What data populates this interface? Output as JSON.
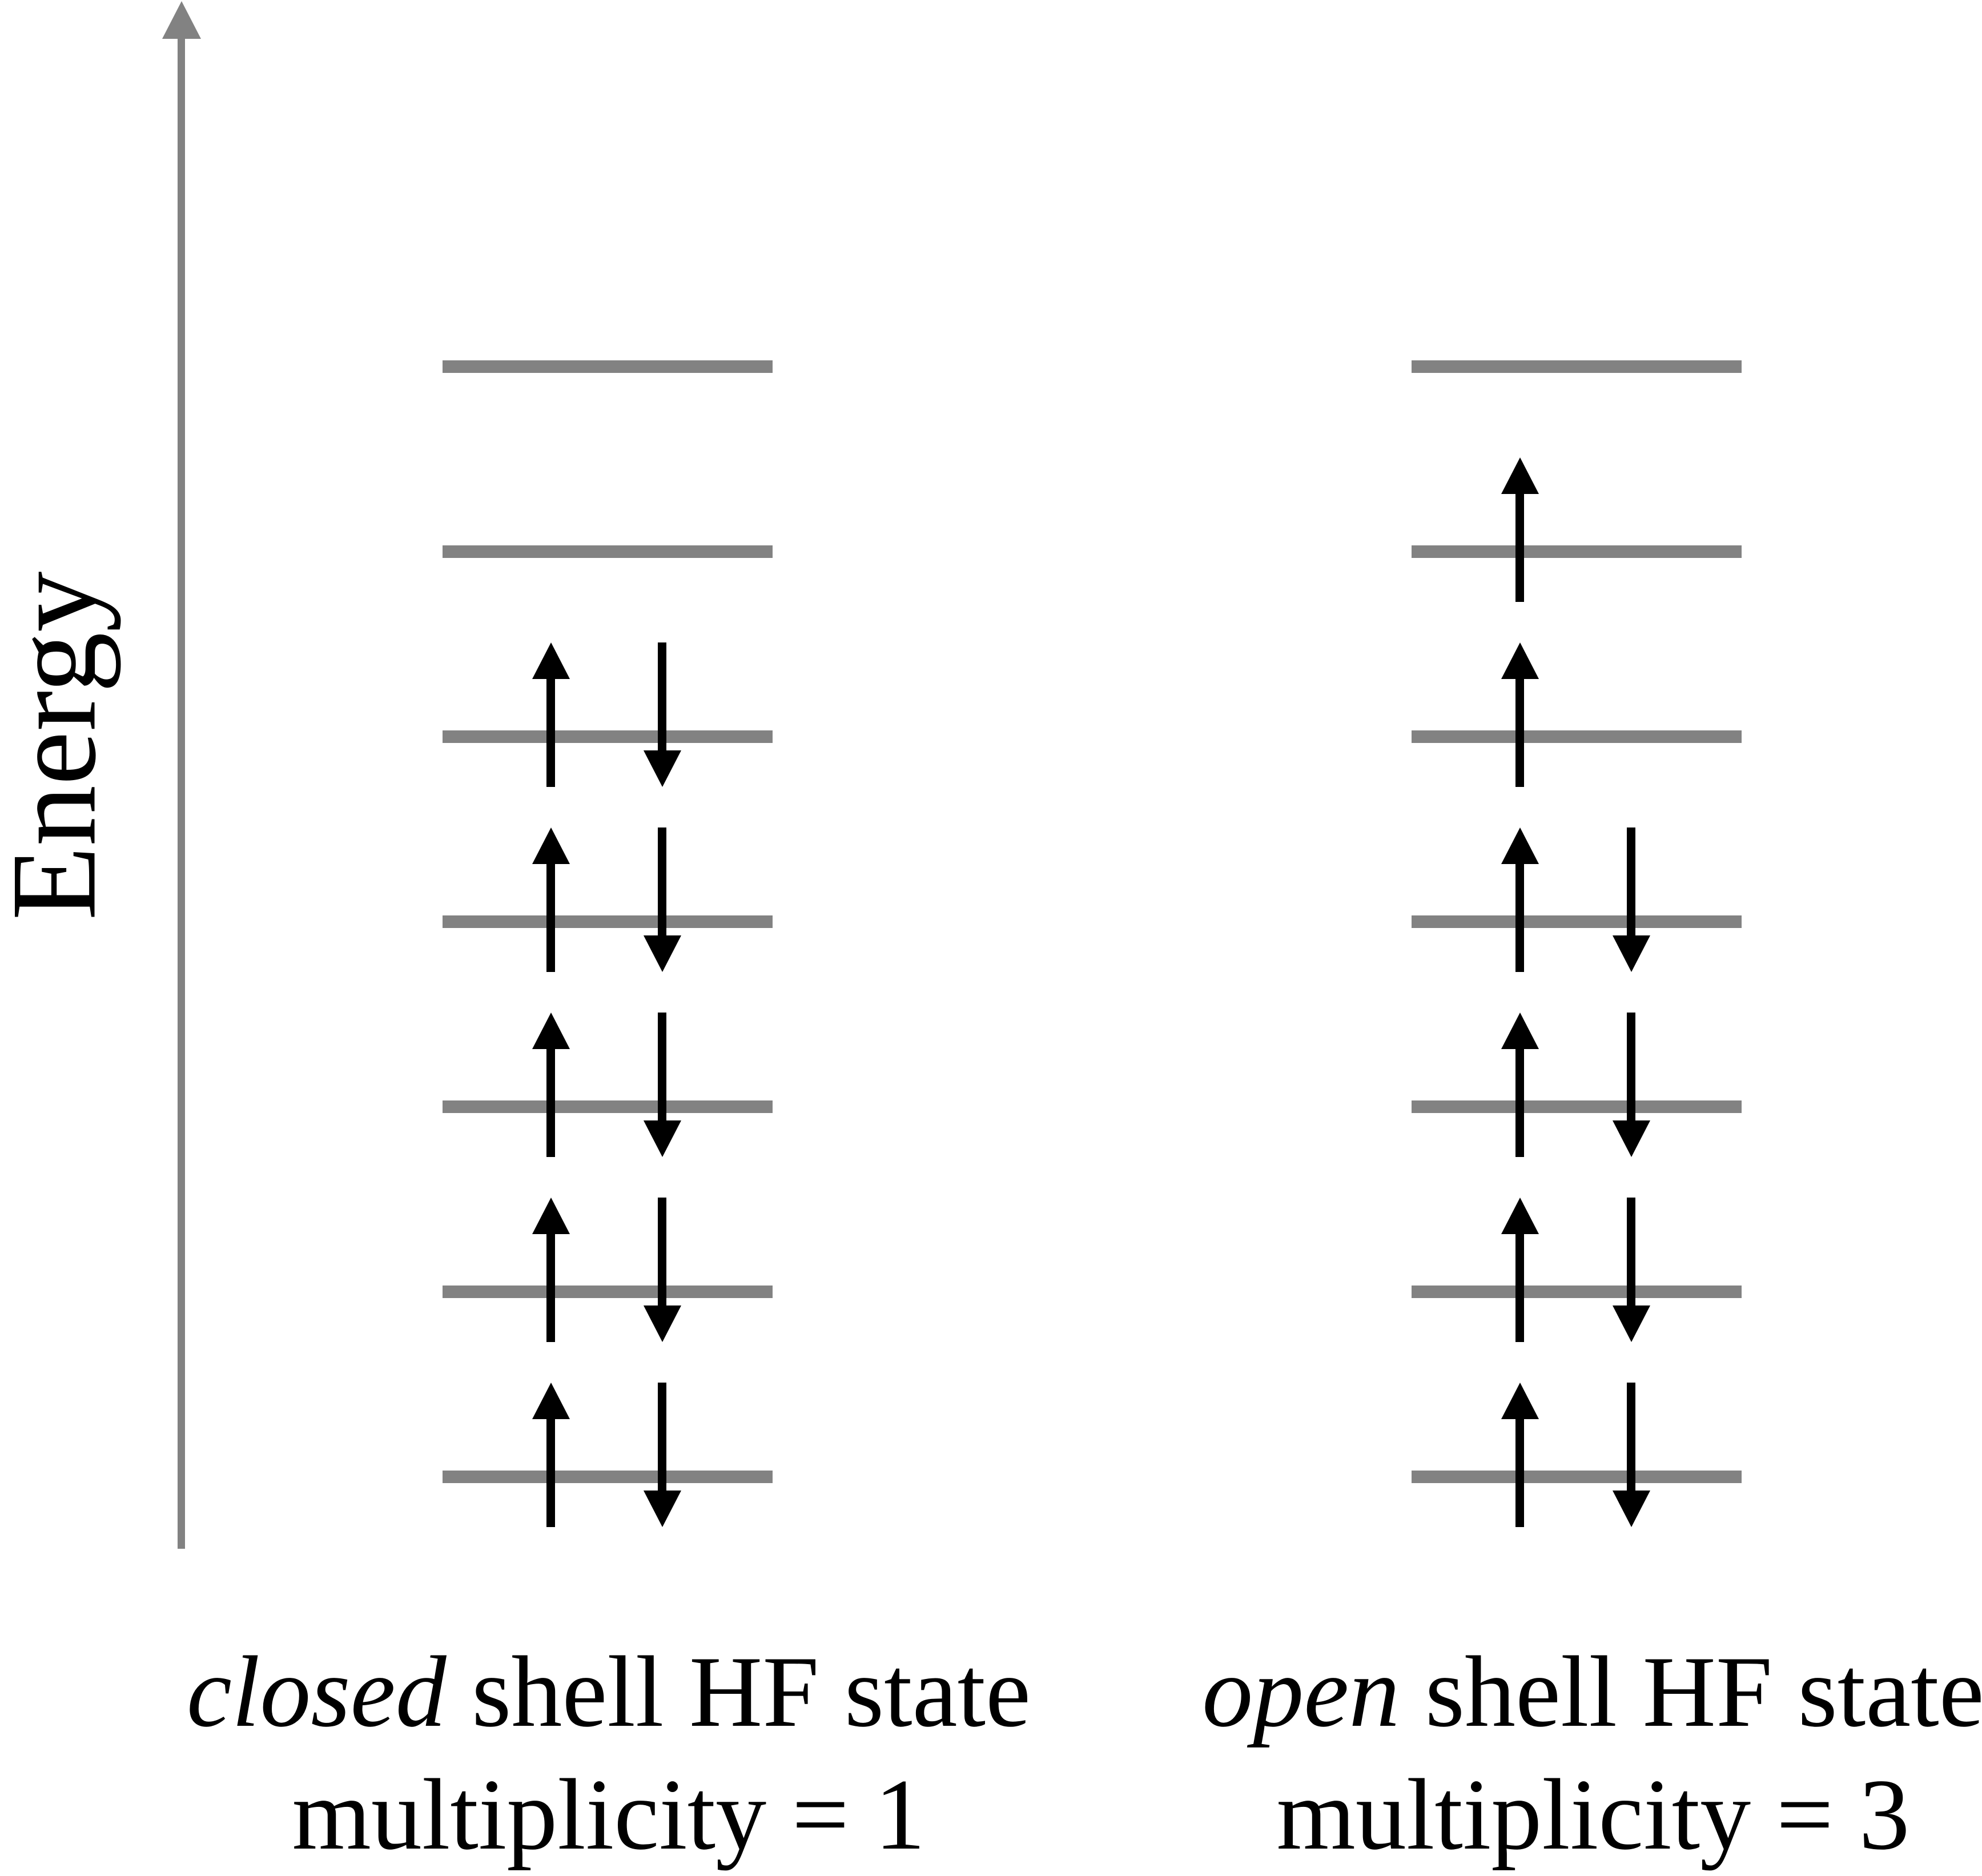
{
  "figure": {
    "background_color": "#ffffff",
    "axis": {
      "label": "Energy",
      "color": "#828282"
    },
    "level_color": "#828282",
    "arrow_color": "#000000",
    "columns": [
      {
        "id": "closed-shell",
        "caption": {
          "italic_word": "closed",
          "rest": " shell HF state",
          "line2": "multiplicity = 1"
        },
        "levels_top_to_bottom": [
          "empty",
          "empty",
          "paired",
          "paired",
          "paired",
          "paired",
          "paired"
        ]
      },
      {
        "id": "open-shell",
        "caption": {
          "italic_word": "open",
          "rest": " shell HF state",
          "line2": "multiplicity = 3"
        },
        "levels_top_to_bottom": [
          "empty",
          "single-up",
          "single-up",
          "paired",
          "paired",
          "paired",
          "paired"
        ]
      }
    ]
  }
}
